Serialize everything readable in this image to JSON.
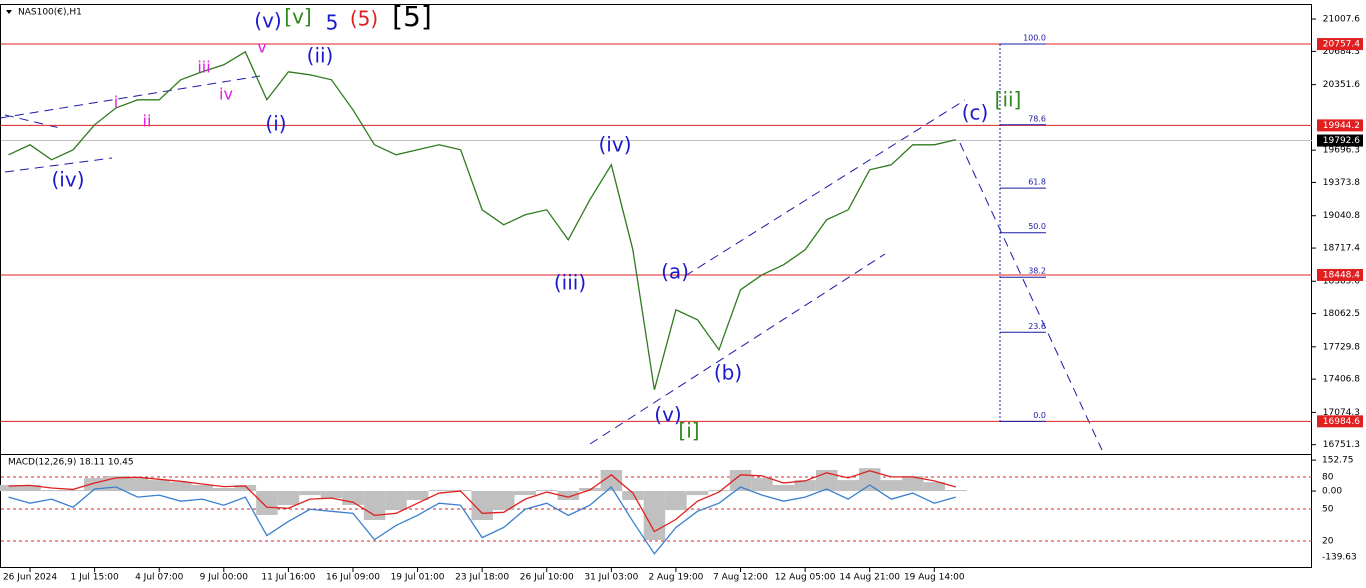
{
  "chart_data": {
    "type": "line",
    "title": "NAS100(€),H1",
    "categories": [
      null,
      "26 Jun 2024",
      null,
      null,
      "1 Jul 15:00",
      null,
      null,
      "4 Jul 07:00",
      null,
      null,
      "9 Jul 00:00",
      null,
      null,
      "11 Jul 16:00",
      null,
      null,
      "16 Jul 09:00",
      null,
      null,
      "19 Jul 01:00",
      null,
      null,
      "23 Jul 18:00",
      null,
      null,
      "26 Jul 10:00",
      null,
      null,
      "31 Jul 03:00",
      null,
      null,
      "2 Aug 19:00",
      null,
      null,
      "7 Aug 12:00",
      null,
      null,
      "12 Aug 05:00",
      null,
      null,
      "14 Aug 21:00",
      null,
      null,
      "19 Aug 14:00",
      null
    ],
    "series": [
      {
        "color": "#2f7a1f",
        "values": [
          19650,
          19750,
          19600,
          19700,
          19950,
          20120,
          20200,
          20200,
          20400,
          20480,
          20550,
          20680,
          20200,
          20480,
          20450,
          20400,
          20100,
          19750,
          19650,
          19700,
          19750,
          19700,
          19100,
          18950,
          19050,
          19100,
          18800,
          19200,
          19550,
          18700,
          17300,
          18100,
          18000,
          17700,
          18300,
          18450,
          18550,
          18700,
          19000,
          19100,
          19500,
          19550,
          19750,
          19750,
          19800
        ]
      }
    ],
    "ylim": [
      16648,
      21148
    ],
    "yticks": [
      21007.6,
      20684.3,
      20351.6,
      19696.3,
      19373.8,
      19040.8,
      18717.4,
      18385.6,
      18062.5,
      17729.8,
      17406.8,
      17074.3,
      16751.3
    ],
    "levels": [
      {
        "value": 20757.4,
        "color": "#e02020"
      },
      {
        "value": 19944.2,
        "color": "#e02020"
      },
      {
        "value": 18448.4,
        "color": "#e02020"
      },
      {
        "value": 16984.6,
        "color": "#e02020"
      }
    ],
    "current_price": 19792.6,
    "fib": {
      "high": 20757.4,
      "low": 16984.6,
      "color": "#1a1aa8",
      "levels": [
        {
          "value": 100,
          "label": "100.0"
        },
        {
          "value": 78.6,
          "label": "78.6"
        },
        {
          "value": 61.8,
          "label": "61.8"
        },
        {
          "value": 50,
          "label": "50.0"
        },
        {
          "value": 38.2,
          "label": "38.2"
        },
        {
          "value": 23.6,
          "label": "23.6"
        },
        {
          "value": 0,
          "label": "0.0"
        }
      ]
    },
    "annotations": [
      {
        "text": "(v)",
        "color": "#1a1acc"
      },
      {
        "text": "[v]",
        "color": "#2a8a1a"
      },
      {
        "text": "5",
        "color": "#1a1acc"
      },
      {
        "text": "(5)",
        "color": "#e02020"
      },
      {
        "text": "[5]",
        "color": "#000000"
      },
      {
        "text": "v",
        "color": "#e020e0"
      },
      {
        "text": "(ii)",
        "color": "#1a1acc"
      },
      {
        "text": "iii",
        "color": "#e020e0"
      },
      {
        "text": "iv",
        "color": "#e020e0"
      },
      {
        "text": "i",
        "color": "#e020e0"
      },
      {
        "text": "ii",
        "color": "#e020e0"
      },
      {
        "text": "(i)",
        "color": "#1a1acc"
      },
      {
        "text": "(iv)",
        "color": "#1a1acc"
      },
      {
        "text": "(iv)",
        "color": "#1a1acc"
      },
      {
        "text": "(iii)",
        "color": "#1a1acc"
      },
      {
        "text": "(a)",
        "color": "#1a1acc"
      },
      {
        "text": "(b)",
        "color": "#1a1acc"
      },
      {
        "text": "(v)",
        "color": "#1a1acc"
      },
      {
        "text": "[i]",
        "color": "#2a8a1a"
      },
      {
        "text": "(c)",
        "color": "#1a1acc"
      },
      {
        "text": "[ii]",
        "color": "#2a8a1a"
      }
    ],
    "macd": {
      "title": "MACD(12,26,9) 18.11 10.45",
      "ylim": [
        -380,
        178
      ],
      "yticks": [
        152.75,
        {
          "value": 0,
          "label": "0.00"
        }
      ],
      "level_labels": [
        "80",
        "50",
        "20",
        "-139.63"
      ],
      "series": [
        {
          "color": "#c0c0c0",
          "values": [
            30,
            30,
            5,
            5,
            64,
            74,
            64,
            54,
            44,
            30,
            15,
            30,
            -118,
            -69,
            -20,
            -35,
            -69,
            -143,
            -94,
            -44,
            5,
            5,
            -143,
            -94,
            -20,
            5,
            -44,
            15,
            104,
            -44,
            -242,
            -94,
            -20,
            5,
            104,
            64,
            30,
            54,
            104,
            54,
            113,
            54,
            74,
            44,
            5
          ]
        },
        {
          "color": "#e02020",
          "values": [
            25,
            28,
            15,
            8,
            40,
            65,
            68,
            58,
            48,
            35,
            22,
            25,
            -80,
            -85,
            -40,
            -35,
            -55,
            -120,
            -110,
            -60,
            -10,
            0,
            -110,
            -105,
            -40,
            -5,
            -30,
            5,
            80,
            -10,
            -200,
            -140,
            -50,
            -5,
            80,
            75,
            40,
            50,
            90,
            65,
            100,
            70,
            70,
            50,
            20
          ]
        },
        {
          "color": "#3a7fd0",
          "values": [
            -30,
            -60,
            -40,
            -80,
            10,
            20,
            -30,
            -20,
            -50,
            -40,
            -70,
            -30,
            -220,
            -150,
            -90,
            -100,
            -110,
            -240,
            -170,
            -120,
            -60,
            -70,
            -230,
            -180,
            -90,
            -60,
            -120,
            -70,
            20,
            -150,
            -310,
            -180,
            -100,
            -60,
            20,
            -20,
            -50,
            -30,
            10,
            -40,
            30,
            -40,
            -10,
            -60,
            -30
          ]
        }
      ]
    }
  }
}
